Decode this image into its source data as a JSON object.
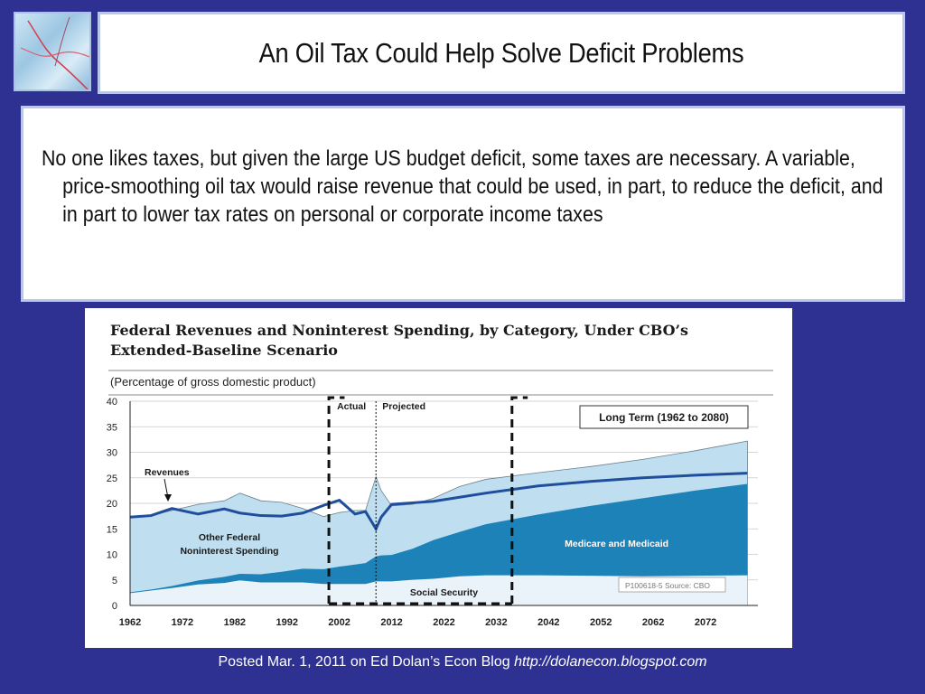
{
  "slide": {
    "title": "An Oil Tax Could Help Solve Deficit Problems",
    "body": "No one likes taxes, but given the large US budget deficit, some taxes are necessary. A variable, price-smoothing oil tax would raise revenue that could be used, in part, to reduce the deficit, and in part to lower tax rates on personal or corporate income taxes",
    "footer_text": "Posted Mar. 1, 2011 on Ed Dolan’s Econ Blog ",
    "footer_url": "http://dolanecon.blogspot.com",
    "colors": {
      "background": "#2e3192",
      "box_border": "#b9c8ea"
    }
  },
  "chart_data": {
    "type": "area",
    "title": "Federal Revenues and Noninterest Spending, by Category, Under CBO’s Extended-Baseline Scenario",
    "subtitle": "(Percentage of gross domestic product)",
    "source_note": "P100618-5 Source: CBO",
    "box_label": "Long Term (1962 to 2080)",
    "actual_label": "Actual",
    "projected_label": "Projected",
    "ylim": [
      0,
      40
    ],
    "xlim": [
      1962,
      2082
    ],
    "y_ticks": [
      "0",
      "5",
      "10",
      "15",
      "20",
      "25",
      "30",
      "35",
      "40"
    ],
    "x_ticks": [
      "1962",
      "1972",
      "1982",
      "1992",
      "2002",
      "2012",
      "2022",
      "2032",
      "2042",
      "2052",
      "2062",
      "2072"
    ],
    "annotations": {
      "revenues": "Revenues",
      "other_federal_1": "Other Federal",
      "other_federal_2": "Noninterest Spending",
      "social_security": "Social Security",
      "medicare": "Medicare and Medicaid"
    },
    "x": [
      1962,
      1966,
      1970,
      1975,
      1980,
      1983,
      1987,
      1991,
      1995,
      1999,
      2002,
      2005,
      2007,
      2009,
      2010,
      2012,
      2016,
      2020,
      2025,
      2030,
      2040,
      2050,
      2060,
      2070,
      2080
    ],
    "series": [
      {
        "name": "Social Security",
        "color": "#eaf3fa",
        "values": [
          2.5,
          3.0,
          3.5,
          4.2,
          4.5,
          5.0,
          4.6,
          4.6,
          4.6,
          4.3,
          4.3,
          4.3,
          4.3,
          4.8,
          4.8,
          4.8,
          5.1,
          5.3,
          5.8,
          6.0,
          6.0,
          5.9,
          5.8,
          5.9,
          6.0
        ]
      },
      {
        "name": "Medicare and Medicaid",
        "color": "#1c82b8",
        "values": [
          2.5,
          3.1,
          3.8,
          4.9,
          5.6,
          6.2,
          6.1,
          6.6,
          7.2,
          7.1,
          7.6,
          8.0,
          8.3,
          9.6,
          9.8,
          9.9,
          11.1,
          12.8,
          14.4,
          15.9,
          17.8,
          19.5,
          21.0,
          22.5,
          23.8
        ]
      },
      {
        "name": "Other Federal Noninterest Spending",
        "color": "#bfdff0",
        "values": [
          17.2,
          17.6,
          18.6,
          19.8,
          20.5,
          22.0,
          20.5,
          20.2,
          19.0,
          17.4,
          18.2,
          18.6,
          18.6,
          25.2,
          22.5,
          19.5,
          19.8,
          21.0,
          23.3,
          24.7,
          26.0,
          27.2,
          28.6,
          30.3,
          32.2
        ]
      },
      {
        "name": "Revenues",
        "color": "#1f4e9c",
        "values": [
          17.3,
          17.6,
          19.0,
          17.9,
          18.9,
          18.1,
          17.6,
          17.5,
          18.1,
          19.6,
          20.6,
          17.9,
          18.4,
          15.0,
          17.3,
          19.8,
          20.1,
          20.4,
          21.2,
          22.0,
          23.4,
          24.3,
          25.0,
          25.5,
          25.9
        ]
      }
    ],
    "actual_box": [
      2000,
      2009
    ],
    "projected_box": [
      2009,
      2035
    ]
  }
}
